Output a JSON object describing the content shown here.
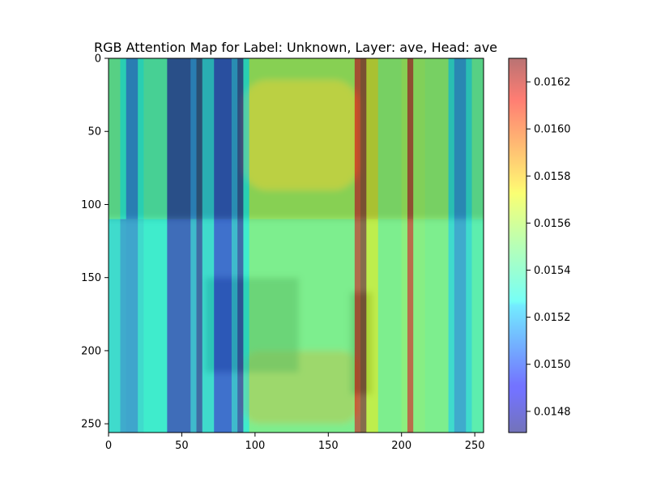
{
  "chart_data": {
    "type": "heatmap",
    "title": "RGB Attention Map for Label: Unknown, Layer: ave, Head: ave",
    "xlabel": "",
    "ylabel": "",
    "xlim": [
      0,
      255
    ],
    "ylim": [
      255,
      0
    ],
    "x_ticks": [
      0,
      50,
      100,
      150,
      200,
      250
    ],
    "y_ticks": [
      0,
      50,
      100,
      150,
      200,
      250
    ],
    "colorbar": {
      "min": 0.01471,
      "max": 0.0163,
      "ticks": [
        0.0148,
        0.015,
        0.0152,
        0.0154,
        0.0156,
        0.0158,
        0.016,
        0.0162
      ],
      "tick_labels": [
        "0.0148",
        "0.0150",
        "0.0152",
        "0.0154",
        "0.0156",
        "0.0158",
        "0.0160",
        "0.0162"
      ],
      "colormap": "jet",
      "alpha": 0.5
    },
    "attention_columns": [
      {
        "x0": 0,
        "x1": 8,
        "top": 0.01545,
        "bottom": 0.01525
      },
      {
        "x0": 8,
        "x1": 12,
        "top": 0.0153,
        "bottom": 0.0151
      },
      {
        "x0": 12,
        "x1": 20,
        "top": 0.01505,
        "bottom": 0.01508
      },
      {
        "x0": 20,
        "x1": 24,
        "top": 0.0153,
        "bottom": 0.01525
      },
      {
        "x0": 24,
        "x1": 40,
        "top": 0.0154,
        "bottom": 0.0153
      },
      {
        "x0": 40,
        "x1": 56,
        "top": 0.01478,
        "bottom": 0.01485
      },
      {
        "x0": 56,
        "x1": 60,
        "top": 0.01505,
        "bottom": 0.01515
      },
      {
        "x0": 60,
        "x1": 64,
        "top": 0.01471,
        "bottom": 0.01478
      },
      {
        "x0": 64,
        "x1": 72,
        "top": 0.0152,
        "bottom": 0.01525
      },
      {
        "x0": 72,
        "x1": 84,
        "top": 0.01485,
        "bottom": 0.01492
      },
      {
        "x0": 84,
        "x1": 88,
        "top": 0.0151,
        "bottom": 0.01515
      },
      {
        "x0": 88,
        "x1": 92,
        "top": 0.01475,
        "bottom": 0.0148
      },
      {
        "x0": 92,
        "x1": 96,
        "top": 0.0153,
        "bottom": 0.0153
      },
      {
        "x0": 96,
        "x1": 168,
        "top": 0.0156,
        "bottom": 0.0155
      },
      {
        "x0": 168,
        "x1": 172,
        "top": 0.01612,
        "bottom": 0.01615
      },
      {
        "x0": 172,
        "x1": 176,
        "top": 0.01625,
        "bottom": 0.01628
      },
      {
        "x0": 176,
        "x1": 184,
        "top": 0.01575,
        "bottom": 0.0157
      },
      {
        "x0": 184,
        "x1": 200,
        "top": 0.01555,
        "bottom": 0.0155
      },
      {
        "x0": 200,
        "x1": 204,
        "top": 0.0156,
        "bottom": 0.01555
      },
      {
        "x0": 204,
        "x1": 208,
        "top": 0.01618,
        "bottom": 0.01612
      },
      {
        "x0": 208,
        "x1": 216,
        "top": 0.01558,
        "bottom": 0.01553
      },
      {
        "x0": 216,
        "x1": 232,
        "top": 0.01555,
        "bottom": 0.0155
      },
      {
        "x0": 232,
        "x1": 236,
        "top": 0.01525,
        "bottom": 0.01525
      },
      {
        "x0": 236,
        "x1": 244,
        "top": 0.01508,
        "bottom": 0.0151
      },
      {
        "x0": 244,
        "x1": 248,
        "top": 0.01525,
        "bottom": 0.01525
      },
      {
        "x0": 248,
        "x1": 256,
        "top": 0.01545,
        "bottom": 0.0154
      }
    ],
    "band_split_y": 110,
    "background_image": {
      "description_colors": {
        "base": "#7fdd9a",
        "gold": "#d4a33c",
        "dark": "#2f6f3a"
      }
    }
  }
}
